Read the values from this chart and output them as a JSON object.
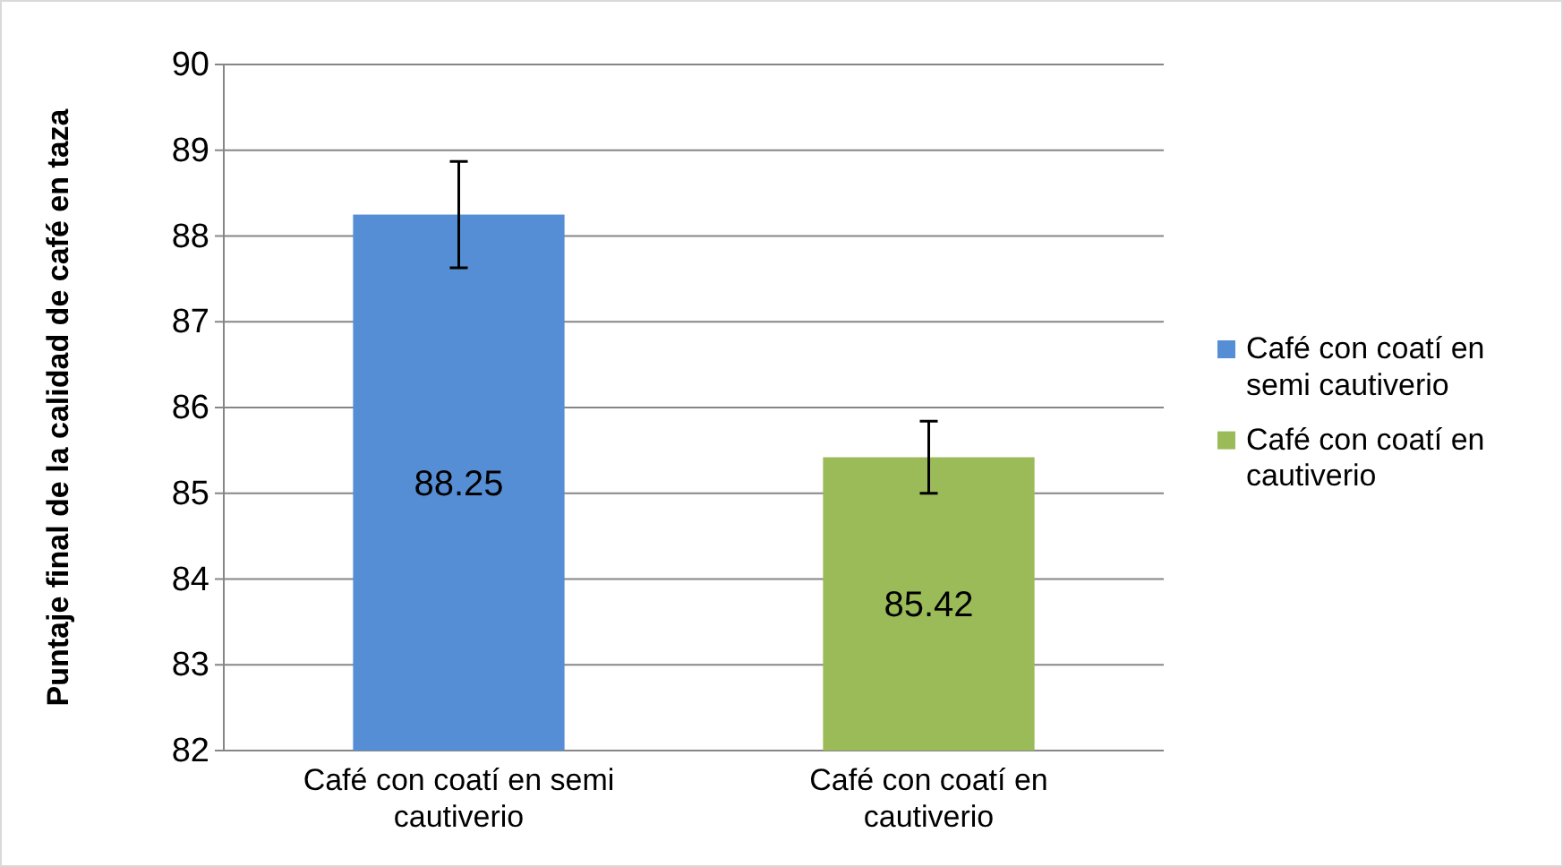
{
  "chart_data": {
    "type": "bar",
    "ylabel": "Puntaje final de la calidad de café en taza",
    "categories": [
      "Café con coatí en semi cautiverio",
      "Café con coatí en cautiverio"
    ],
    "series": [
      {
        "name": "Café con coatí en semi cautiverio",
        "color": "#558ed5",
        "values": [
          88.25,
          null
        ],
        "errors": [
          0.62,
          null
        ]
      },
      {
        "name": "Café con coatí en cautiverio",
        "color": "#9bbb59",
        "values": [
          null,
          85.42
        ],
        "errors": [
          null,
          0.42
        ]
      }
    ],
    "ylim": [
      82,
      90
    ],
    "yticks": [
      82,
      83,
      84,
      85,
      86,
      87,
      88,
      89,
      90
    ],
    "grid": "y",
    "legend": "right",
    "data_labels": true
  }
}
